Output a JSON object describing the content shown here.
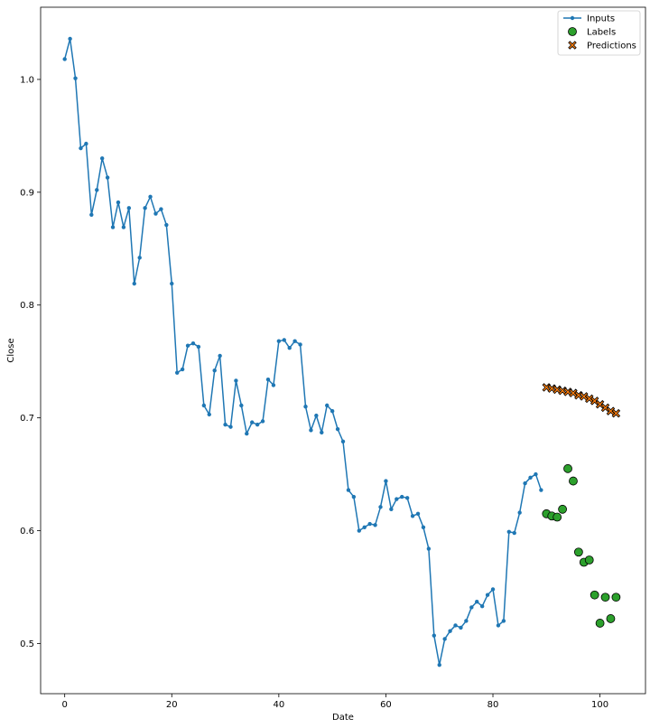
{
  "chart_data": {
    "type": "line",
    "title": "",
    "xlabel": "Date",
    "ylabel": "Close",
    "xlim": [
      -4.5,
      108.5
    ],
    "ylim": [
      0.4555,
      1.064
    ],
    "x_ticks": [
      0,
      20,
      40,
      60,
      80,
      100
    ],
    "x_tick_labels": [
      "0",
      "20",
      "40",
      "60",
      "80",
      "100"
    ],
    "y_ticks": [
      0.5,
      0.6,
      0.7,
      0.8,
      0.9,
      1.0
    ],
    "y_tick_labels": [
      "0.5",
      "0.6",
      "0.7",
      "0.8",
      "0.9",
      "1.0"
    ],
    "grid": false,
    "legend_position": "top-right",
    "colors": {
      "inputs": "#1f77b4",
      "labels": "#2ca02c",
      "predictions": "#ff7f0e",
      "edge": "#000000"
    },
    "series": [
      {
        "name": "Inputs",
        "kind": "line-with-dots",
        "x": [
          0,
          1,
          2,
          3,
          4,
          5,
          6,
          7,
          8,
          9,
          10,
          11,
          12,
          13,
          14,
          15,
          16,
          17,
          18,
          19,
          20,
          21,
          22,
          23,
          24,
          25,
          26,
          27,
          28,
          29,
          30,
          31,
          32,
          33,
          34,
          35,
          36,
          37,
          38,
          39,
          40,
          41,
          42,
          43,
          44,
          45,
          46,
          47,
          48,
          49,
          50,
          51,
          52,
          53,
          54,
          55,
          56,
          57,
          58,
          59,
          60,
          61,
          62,
          63,
          64,
          65,
          66,
          67,
          68,
          69,
          70,
          71,
          72,
          73,
          74,
          75,
          76,
          77,
          78,
          79,
          80,
          81,
          82,
          83,
          84,
          85,
          86,
          87,
          88,
          89
        ],
        "y": [
          1.018,
          1.036,
          1.001,
          0.939,
          0.943,
          0.88,
          0.902,
          0.93,
          0.913,
          0.869,
          0.891,
          0.869,
          0.886,
          0.819,
          0.842,
          0.886,
          0.896,
          0.881,
          0.885,
          0.871,
          0.819,
          0.74,
          0.743,
          0.764,
          0.766,
          0.763,
          0.711,
          0.703,
          0.742,
          0.755,
          0.694,
          0.692,
          0.733,
          0.711,
          0.686,
          0.696,
          0.694,
          0.697,
          0.734,
          0.729,
          0.768,
          0.769,
          0.762,
          0.768,
          0.765,
          0.71,
          0.689,
          0.702,
          0.687,
          0.711,
          0.706,
          0.69,
          0.679,
          0.636,
          0.63,
          0.6,
          0.603,
          0.606,
          0.605,
          0.621,
          0.644,
          0.619,
          0.628,
          0.63,
          0.629,
          0.613,
          0.615,
          0.603,
          0.584,
          0.507,
          0.481,
          0.504,
          0.511,
          0.516,
          0.514,
          0.52,
          0.532,
          0.537,
          0.533,
          0.543,
          0.548,
          0.516,
          0.52,
          0.599,
          0.598,
          0.616,
          0.642,
          0.647,
          0.65,
          0.636
        ]
      },
      {
        "name": "Labels",
        "kind": "scatter-circle",
        "x": [
          90,
          91,
          92,
          93,
          94,
          95,
          96,
          97,
          98,
          99,
          100,
          101,
          102,
          103
        ],
        "y": [
          0.615,
          0.613,
          0.612,
          0.619,
          0.655,
          0.644,
          0.581,
          0.572,
          0.574,
          0.543,
          0.518,
          0.541,
          0.522,
          0.541
        ]
      },
      {
        "name": "Predictions",
        "kind": "scatter-x",
        "x": [
          90,
          91,
          92,
          93,
          94,
          95,
          96,
          97,
          98,
          99,
          100,
          101,
          102,
          103
        ],
        "y": [
          0.727,
          0.726,
          0.725,
          0.724,
          0.723,
          0.722,
          0.72,
          0.719,
          0.717,
          0.715,
          0.712,
          0.709,
          0.706,
          0.704
        ]
      }
    ]
  }
}
